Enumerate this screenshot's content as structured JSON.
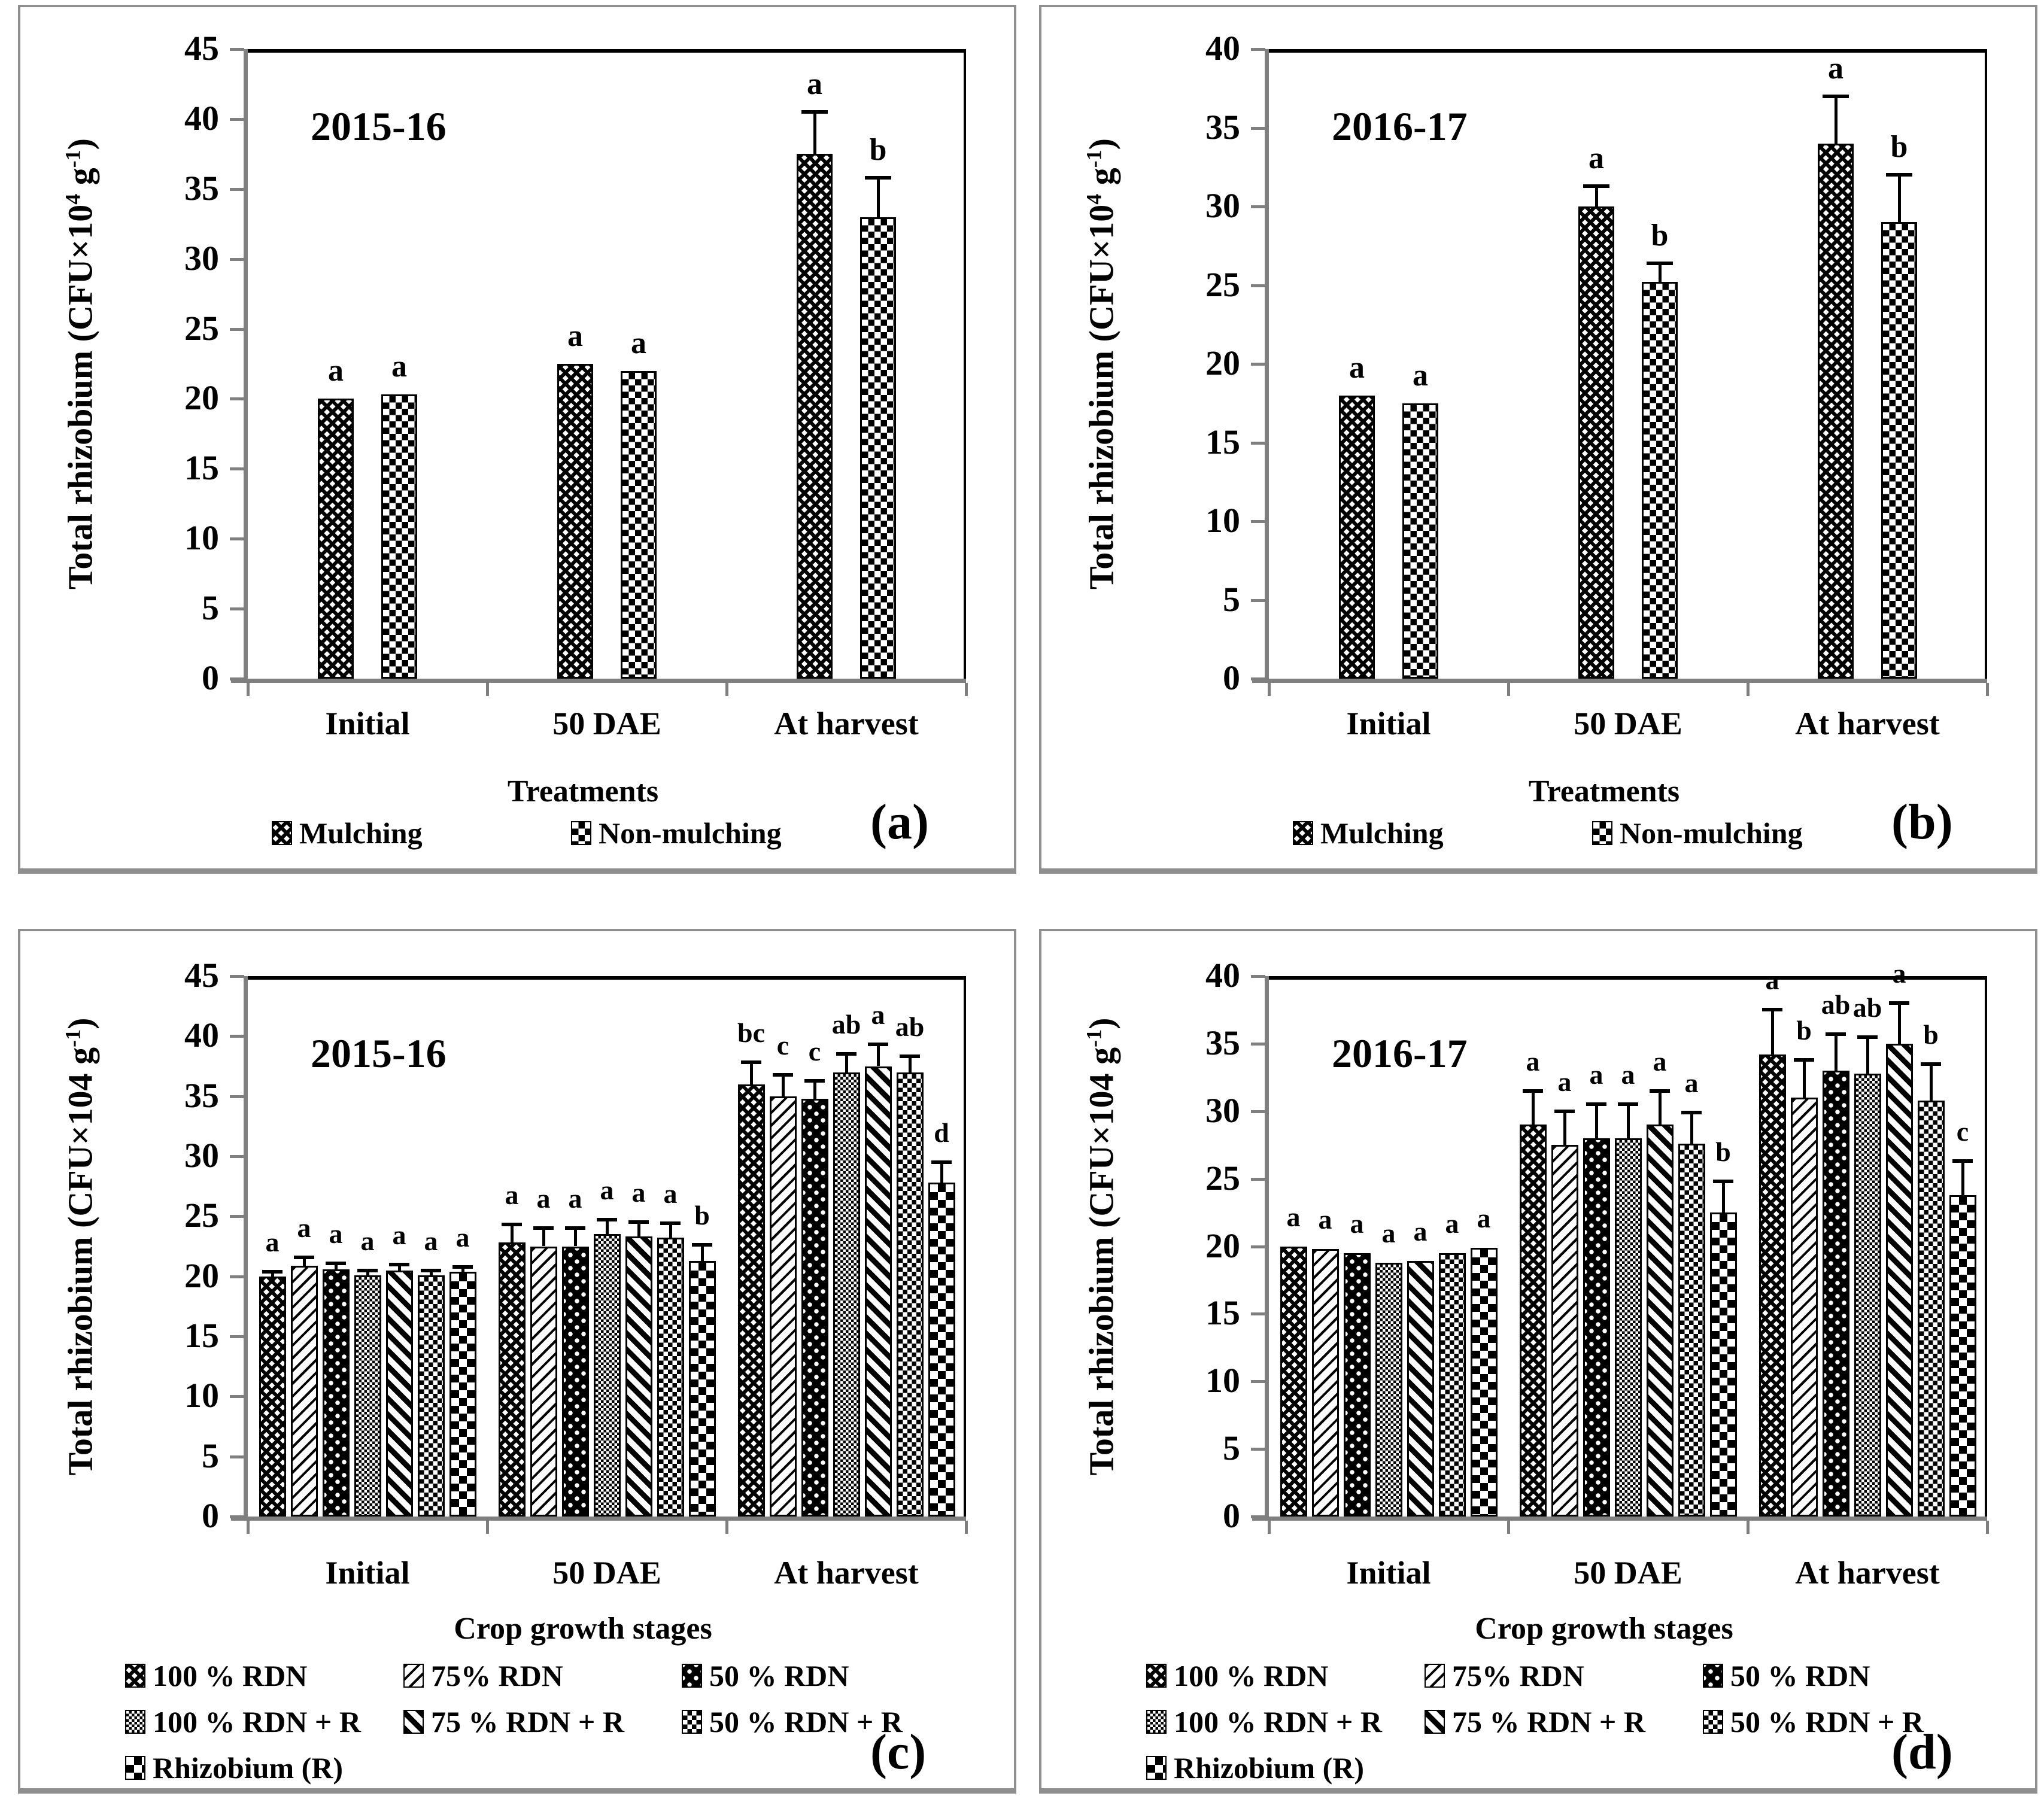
{
  "chart_data": [
    {
      "type": "bar",
      "panel_label": "(a)",
      "year_label": "2015-16",
      "row": "top",
      "ylabel_segments": [
        {
          "t": "Total rhizobium (CFU×10"
        },
        {
          "sup": "4"
        },
        {
          "t": " g"
        },
        {
          "sup": "-1"
        },
        {
          "t": ")"
        }
      ],
      "xlabel": "Treatments",
      "ylim": [
        0,
        45
      ],
      "yticks": [
        0,
        5,
        10,
        15,
        20,
        25,
        30,
        35,
        40,
        45
      ],
      "grid": false,
      "legend_position": "bottom",
      "categories": [
        "Initial",
        "50 DAE",
        "At harvest"
      ],
      "series": [
        {
          "name": "Mulching",
          "pattern": "dense-diamond"
        },
        {
          "name": "Non-mulching",
          "pattern": "big-check"
        }
      ],
      "values": [
        [
          20.0,
          20.3
        ],
        [
          22.5,
          22.0
        ],
        [
          37.5,
          33.0
        ]
      ],
      "errors": [
        [
          0,
          0
        ],
        [
          0,
          0
        ],
        [
          3.0,
          2.8
        ]
      ],
      "letters": [
        [
          "a",
          "a"
        ],
        [
          "a",
          "a"
        ],
        [
          "a",
          "b"
        ]
      ]
    },
    {
      "type": "bar",
      "panel_label": "(b)",
      "year_label": "2016-17",
      "row": "top",
      "ylabel_segments": [
        {
          "t": "Total rhizobium (CFU×10"
        },
        {
          "sup": "4"
        },
        {
          "t": " g"
        },
        {
          "sup": "-1"
        },
        {
          "t": ")"
        }
      ],
      "xlabel": "Treatments",
      "ylim": [
        0,
        40
      ],
      "yticks": [
        0,
        5,
        10,
        15,
        20,
        25,
        30,
        35,
        40
      ],
      "grid": false,
      "legend_position": "bottom",
      "categories": [
        "Initial",
        "50 DAE",
        "At harvest"
      ],
      "series": [
        {
          "name": "Mulching",
          "pattern": "dense-diamond"
        },
        {
          "name": "Non-mulching",
          "pattern": "big-check"
        }
      ],
      "values": [
        [
          18.0,
          17.5
        ],
        [
          30.0,
          25.2
        ],
        [
          34.0,
          29.0
        ]
      ],
      "errors": [
        [
          0,
          0
        ],
        [
          1.3,
          1.2
        ],
        [
          3.0,
          3.0
        ]
      ],
      "letters": [
        [
          "a",
          "a"
        ],
        [
          "a",
          "b"
        ],
        [
          "a",
          "b"
        ]
      ]
    },
    {
      "type": "bar",
      "panel_label": "(c)",
      "year_label": "2015-16",
      "row": "bot",
      "ylabel_segments": [
        {
          "t": "Total rhizobium (CFU×104 g"
        },
        {
          "sup": "-1"
        },
        {
          "t": ")"
        }
      ],
      "xlabel": "Crop growth stages",
      "ylim": [
        0,
        45
      ],
      "yticks": [
        0,
        5,
        10,
        15,
        20,
        25,
        30,
        35,
        40,
        45
      ],
      "grid": false,
      "legend_position": "bottom",
      "categories": [
        "Initial",
        "50 DAE",
        "At harvest"
      ],
      "series": [
        {
          "name": "100 % RDN",
          "pattern": "dense-diamond"
        },
        {
          "name": "75% RDN",
          "pattern": "light-diag"
        },
        {
          "name": "50 % RDN",
          "pattern": "black-dots"
        },
        {
          "name": "100 % RDN + R",
          "pattern": "fine-check"
        },
        {
          "name": "75 % RDN + R",
          "pattern": "thick-diag"
        },
        {
          "name": "50 % RDN + R",
          "pattern": "med-check"
        },
        {
          "name": "Rhizobium (R)",
          "pattern": "large-check"
        }
      ],
      "values": [
        [
          20.0,
          20.9,
          20.6,
          20.1,
          20.5,
          20.1,
          20.4
        ],
        [
          22.8,
          22.5,
          22.5,
          23.5,
          23.3,
          23.2,
          21.3
        ],
        [
          36.0,
          35.0,
          34.8,
          37.0,
          37.5,
          37.0,
          27.8
        ]
      ],
      "errors": [
        [
          0.4,
          0.7,
          0.5,
          0.4,
          0.5,
          0.4,
          0.4
        ],
        [
          1.5,
          1.5,
          1.5,
          1.2,
          1.2,
          1.2,
          1.3
        ],
        [
          1.8,
          1.8,
          1.5,
          1.5,
          1.8,
          1.3,
          1.7
        ]
      ],
      "letters": [
        [
          "a",
          "a",
          "a",
          "a",
          "a",
          "a",
          "a"
        ],
        [
          "a",
          "a",
          "a",
          "a",
          "a",
          "a",
          "b"
        ],
        [
          "bc",
          "c",
          "c",
          "ab",
          "a",
          "ab",
          "d"
        ]
      ]
    },
    {
      "type": "bar",
      "panel_label": "(d)",
      "year_label": "2016-17",
      "row": "bot",
      "ylabel_segments": [
        {
          "t": "Total rhizobium (CFU×104 g"
        },
        {
          "sup": "-1"
        },
        {
          "t": ")"
        }
      ],
      "xlabel": "Crop growth stages",
      "ylim": [
        0,
        40
      ],
      "yticks": [
        0,
        5,
        10,
        15,
        20,
        25,
        30,
        35,
        40
      ],
      "grid": false,
      "legend_position": "bottom",
      "categories": [
        "Initial",
        "50 DAE",
        "At harvest"
      ],
      "series": [
        {
          "name": "100 % RDN",
          "pattern": "dense-diamond"
        },
        {
          "name": "75% RDN",
          "pattern": "light-diag"
        },
        {
          "name": "50 % RDN",
          "pattern": "black-dots"
        },
        {
          "name": "100 % RDN + R",
          "pattern": "fine-check"
        },
        {
          "name": "75 % RDN + R",
          "pattern": "thick-diag"
        },
        {
          "name": "50 % RDN + R",
          "pattern": "med-check"
        },
        {
          "name": "Rhizobium (R)",
          "pattern": "large-check"
        }
      ],
      "values": [
        [
          20.0,
          19.8,
          19.5,
          18.8,
          18.9,
          19.5,
          19.9
        ],
        [
          29.0,
          27.5,
          28.0,
          28.0,
          29.0,
          27.6,
          22.5
        ],
        [
          34.2,
          31.0,
          33.0,
          32.8,
          35.0,
          30.8,
          23.8
        ]
      ],
      "errors": [
        [
          0,
          0,
          0,
          0,
          0,
          0,
          0
        ],
        [
          2.5,
          2.5,
          2.5,
          2.5,
          2.5,
          2.3,
          2.3
        ],
        [
          3.3,
          2.8,
          2.7,
          2.7,
          3.0,
          2.7,
          2.5
        ]
      ],
      "letters": [
        [
          "a",
          "a",
          "a",
          "a",
          "a",
          "a",
          "a"
        ],
        [
          "a",
          "a",
          "a",
          "a",
          "a",
          "a",
          "b"
        ],
        [
          "a",
          "b",
          "ab",
          "ab",
          "a",
          "b",
          "c"
        ]
      ]
    }
  ]
}
